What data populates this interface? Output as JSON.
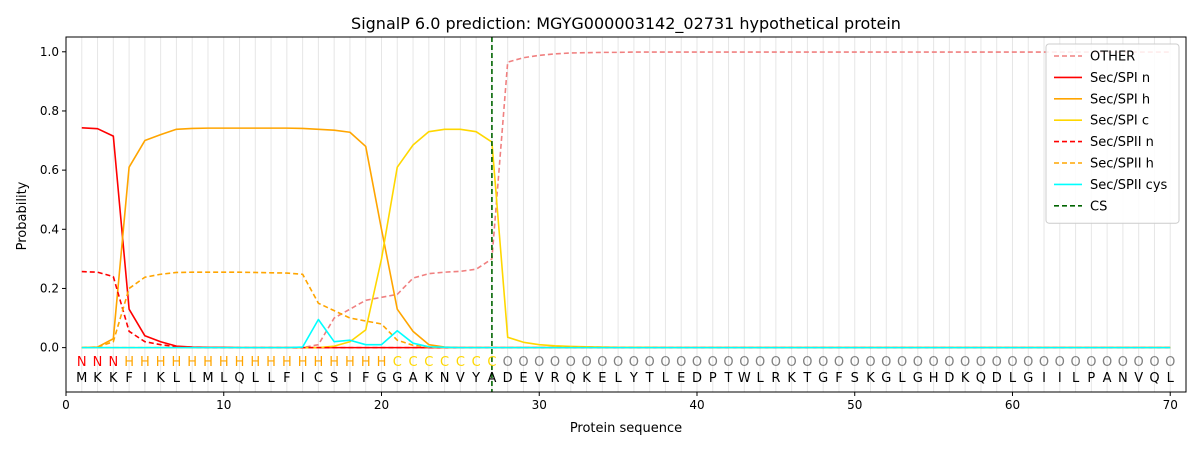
{
  "chart_data": {
    "type": "line",
    "title": "SignalP 6.0 prediction: MGYG000003142_02731 hypothetical protein",
    "xlabel": "Protein sequence",
    "ylabel": "Probability",
    "xlim": [
      0,
      71
    ],
    "ylim": [
      -0.15,
      1.05
    ],
    "xticks": [
      0,
      10,
      20,
      30,
      40,
      50,
      60,
      70
    ],
    "yticks": [
      0.0,
      0.2,
      0.4,
      0.6,
      0.8,
      1.0
    ],
    "ytick_labels": [
      "0.0",
      "0.2",
      "0.4",
      "0.6",
      "0.8",
      "1.0"
    ],
    "grid": "vertical lines at every residue",
    "legend_position": "top-right",
    "sequence": [
      "M",
      "K",
      "K",
      "F",
      "I",
      "K",
      "L",
      "L",
      "M",
      "L",
      "Q",
      "L",
      "L",
      "F",
      "I",
      "C",
      "S",
      "I",
      "F",
      "G",
      "G",
      "A",
      "K",
      "N",
      "V",
      "Y",
      "A",
      "D",
      "E",
      "V",
      "R",
      "Q",
      "K",
      "E",
      "L",
      "Y",
      "T",
      "L",
      "E",
      "D",
      "P",
      "T",
      "W",
      "L",
      "R",
      "K",
      "T",
      "G",
      "F",
      "S",
      "K",
      "G",
      "L",
      "G",
      "H",
      "D",
      "K",
      "Q",
      "D",
      "L",
      "G",
      "I",
      "I",
      "L",
      "P",
      "A",
      "N",
      "V",
      "Q",
      "L"
    ],
    "labels": [
      "N",
      "N",
      "N",
      "H",
      "H",
      "H",
      "H",
      "H",
      "H",
      "H",
      "H",
      "H",
      "H",
      "H",
      "H",
      "H",
      "H",
      "H",
      "H",
      "H",
      "C",
      "C",
      "C",
      "C",
      "C",
      "C",
      "C",
      "O",
      "O",
      "O",
      "O",
      "O",
      "O",
      "O",
      "O",
      "O",
      "O",
      "O",
      "O",
      "O",
      "O",
      "O",
      "O",
      "O",
      "O",
      "O",
      "O",
      "O",
      "O",
      "O",
      "O",
      "O",
      "O",
      "O",
      "O",
      "O",
      "O",
      "O",
      "O",
      "O",
      "O",
      "O",
      "O",
      "O",
      "O",
      "O",
      "O",
      "O",
      "O",
      "O"
    ],
    "label_colors": {
      "N": "#ff0000",
      "H": "#ffa500",
      "C": "#ffd700",
      "O": "#808080"
    },
    "cleavage_site": 27,
    "cs_label": "CS",
    "cs_color": "#006400",
    "series": [
      {
        "name": "OTHER",
        "color": "#f08080",
        "dash": "dashed",
        "values": [
          0.0,
          0.0,
          0.0,
          0.0,
          0.0,
          0.0,
          0.0,
          0.0,
          0.0,
          0.0,
          0.0,
          0.0,
          0.0,
          0.0,
          0.0,
          0.01,
          0.1,
          0.13,
          0.16,
          0.17,
          0.18,
          0.235,
          0.25,
          0.255,
          0.258,
          0.265,
          0.3,
          0.965,
          0.98,
          0.988,
          0.993,
          0.996,
          0.997,
          0.998,
          0.998,
          0.999,
          0.999,
          0.999,
          0.999,
          0.999,
          0.999,
          0.999,
          0.999,
          0.999,
          0.999,
          0.999,
          0.999,
          0.999,
          0.999,
          0.999,
          0.999,
          0.999,
          0.999,
          0.999,
          0.999,
          0.999,
          0.999,
          0.999,
          0.999,
          0.999,
          0.999,
          0.999,
          0.999,
          0.999,
          0.999,
          0.999,
          0.999,
          0.999,
          0.999,
          0.999
        ]
      },
      {
        "name": "Sec/SPI n",
        "color": "#ff0000",
        "dash": "solid",
        "values": [
          0.743,
          0.74,
          0.715,
          0.13,
          0.04,
          0.02,
          0.005,
          0.002,
          0.001,
          0.001,
          0.0,
          0.0,
          0.0,
          0.0,
          0.0,
          0.0,
          0.0,
          0.0,
          0.0,
          0.0,
          0.0,
          0.0,
          0.0,
          0.0,
          0.0,
          0.0,
          0.0,
          0.0,
          0.0,
          0.0,
          0.0,
          0.0,
          0.0,
          0.0,
          0.0,
          0.0,
          0.0,
          0.0,
          0.0,
          0.0,
          0.0,
          0.0,
          0.0,
          0.0,
          0.0,
          0.0,
          0.0,
          0.0,
          0.0,
          0.0,
          0.0,
          0.0,
          0.0,
          0.0,
          0.0,
          0.0,
          0.0,
          0.0,
          0.0,
          0.0,
          0.0,
          0.0,
          0.0,
          0.0,
          0.0,
          0.0,
          0.0,
          0.0,
          0.0,
          0.0
        ]
      },
      {
        "name": "Sec/SPI h",
        "color": "#ffa500",
        "dash": "solid",
        "values": [
          0.0,
          0.002,
          0.03,
          0.61,
          0.7,
          0.72,
          0.738,
          0.741,
          0.742,
          0.742,
          0.742,
          0.742,
          0.742,
          0.742,
          0.741,
          0.738,
          0.735,
          0.728,
          0.68,
          0.4,
          0.13,
          0.055,
          0.01,
          0.002,
          0.0,
          0.0,
          0.0,
          0.0,
          0.0,
          0.0,
          0.0,
          0.0,
          0.0,
          0.0,
          0.0,
          0.0,
          0.0,
          0.0,
          0.0,
          0.0,
          0.0,
          0.0,
          0.0,
          0.0,
          0.0,
          0.0,
          0.0,
          0.0,
          0.0,
          0.0,
          0.0,
          0.0,
          0.0,
          0.0,
          0.0,
          0.0,
          0.0,
          0.0,
          0.0,
          0.0,
          0.0,
          0.0,
          0.0,
          0.0,
          0.0,
          0.0,
          0.0,
          0.0,
          0.0,
          0.0
        ]
      },
      {
        "name": "Sec/SPI c",
        "color": "#ffd700",
        "dash": "solid",
        "values": [
          0.0,
          0.0,
          0.0,
          0.0,
          0.0,
          0.0,
          0.0,
          0.0,
          0.0,
          0.0,
          0.0,
          0.0,
          0.0,
          0.0,
          0.0,
          0.0,
          0.005,
          0.02,
          0.06,
          0.3,
          0.61,
          0.685,
          0.73,
          0.738,
          0.738,
          0.73,
          0.695,
          0.035,
          0.018,
          0.01,
          0.006,
          0.004,
          0.003,
          0.002,
          0.001,
          0.001,
          0.001,
          0.0,
          0.0,
          0.0,
          0.0,
          0.0,
          0.0,
          0.0,
          0.0,
          0.0,
          0.0,
          0.0,
          0.0,
          0.0,
          0.0,
          0.0,
          0.0,
          0.0,
          0.0,
          0.0,
          0.0,
          0.0,
          0.0,
          0.0,
          0.0,
          0.0,
          0.0,
          0.0,
          0.0,
          0.0,
          0.0,
          0.0,
          0.0,
          0.0
        ]
      },
      {
        "name": "Sec/SPII n",
        "color": "#ff0000",
        "dash": "dashed",
        "values": [
          0.257,
          0.255,
          0.24,
          0.055,
          0.02,
          0.01,
          0.003,
          0.001,
          0.0,
          0.0,
          0.0,
          0.0,
          0.0,
          0.0,
          0.0,
          0.0,
          0.0,
          0.0,
          0.0,
          0.0,
          0.0,
          0.0,
          0.0,
          0.0,
          0.0,
          0.0,
          0.0,
          0.0,
          0.0,
          0.0,
          0.0,
          0.0,
          0.0,
          0.0,
          0.0,
          0.0,
          0.0,
          0.0,
          0.0,
          0.0,
          0.0,
          0.0,
          0.0,
          0.0,
          0.0,
          0.0,
          0.0,
          0.0,
          0.0,
          0.0,
          0.0,
          0.0,
          0.0,
          0.0,
          0.0,
          0.0,
          0.0,
          0.0,
          0.0,
          0.0,
          0.0,
          0.0,
          0.0,
          0.0,
          0.0,
          0.0,
          0.0,
          0.0,
          0.0,
          0.0
        ]
      },
      {
        "name": "Sec/SPII h",
        "color": "#ffa500",
        "dash": "dashed",
        "values": [
          0.0,
          0.002,
          0.02,
          0.2,
          0.238,
          0.248,
          0.254,
          0.255,
          0.255,
          0.255,
          0.255,
          0.254,
          0.253,
          0.252,
          0.248,
          0.15,
          0.125,
          0.1,
          0.09,
          0.08,
          0.025,
          0.008,
          0.002,
          0.0,
          0.0,
          0.0,
          0.0,
          0.0,
          0.0,
          0.0,
          0.0,
          0.0,
          0.0,
          0.0,
          0.0,
          0.0,
          0.0,
          0.0,
          0.0,
          0.0,
          0.0,
          0.0,
          0.0,
          0.0,
          0.0,
          0.0,
          0.0,
          0.0,
          0.0,
          0.0,
          0.0,
          0.0,
          0.0,
          0.0,
          0.0,
          0.0,
          0.0,
          0.0,
          0.0,
          0.0,
          0.0,
          0.0,
          0.0,
          0.0,
          0.0,
          0.0,
          0.0,
          0.0,
          0.0,
          0.0
        ]
      },
      {
        "name": "Sec/SPII cys",
        "color": "#00ffff",
        "dash": "solid",
        "values": [
          0.0,
          0.0,
          0.0,
          0.0,
          0.0,
          0.0,
          0.0,
          0.0,
          0.0,
          0.0,
          0.0,
          0.0,
          0.0,
          0.0,
          0.002,
          0.095,
          0.02,
          0.025,
          0.01,
          0.01,
          0.057,
          0.015,
          0.003,
          0.001,
          0.0,
          0.0,
          0.0,
          0.0,
          0.0,
          0.0,
          0.0,
          0.0,
          0.0,
          0.0,
          0.0,
          0.0,
          0.0,
          0.0,
          0.0,
          0.0,
          0.0,
          0.0,
          0.0,
          0.0,
          0.0,
          0.0,
          0.0,
          0.0,
          0.0,
          0.0,
          0.0,
          0.0,
          0.0,
          0.0,
          0.0,
          0.0,
          0.0,
          0.0,
          0.0,
          0.0,
          0.0,
          0.0,
          0.0,
          0.0,
          0.0,
          0.0,
          0.0,
          0.0,
          0.0,
          0.0
        ]
      }
    ]
  }
}
